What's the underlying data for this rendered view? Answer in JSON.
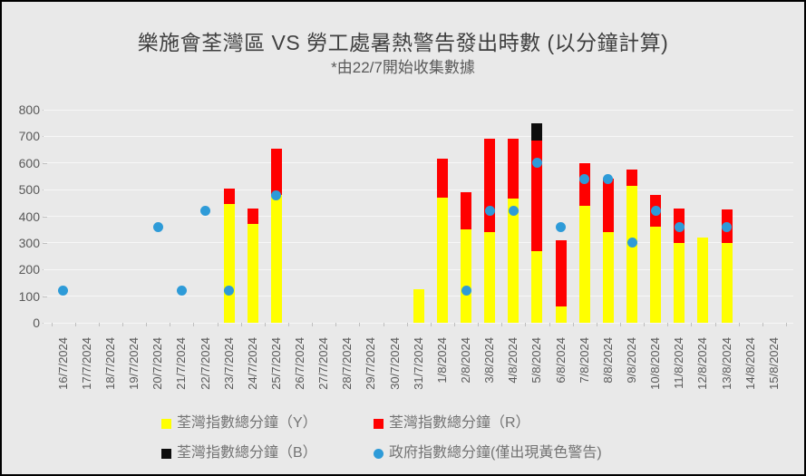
{
  "title": "樂施會荃灣區 VS 勞工處暑熱警告發出時數 (以分鐘計算)",
  "subtitle": "*由22/7開始收集數據",
  "colors": {
    "background": "#e9e9e9",
    "gridline": "#f7f7f7",
    "axis_text": "#595959",
    "legend_text": "#737373",
    "yellow": "#ffff00",
    "red": "#ff0000",
    "black": "#0d0d0d",
    "blue": "#2e9bd8"
  },
  "chart_data": {
    "type": "bar",
    "subtype": "stacked-bar-with-scatter",
    "title": "樂施會荃灣區 VS 勞工處暑熱警告發出時數 (以分鐘計算)",
    "subtitle": "*由22/7開始收集數據",
    "xlabel": "",
    "ylabel": "",
    "ylim": [
      0,
      800
    ],
    "y_step": 100,
    "grid": true,
    "legend_position": "bottom",
    "categories": [
      "16/7/2024",
      "17/7/2024",
      "18/7/2024",
      "19/7/2024",
      "20/7/2024",
      "21/7/2024",
      "22/7/2024",
      "23/7/2024",
      "24/7/2024",
      "25/7/2024",
      "26/7/2024",
      "27/7/2024",
      "28/7/2024",
      "29/7/2024",
      "30/7/2024",
      "31/7/2024",
      "1/8/2024",
      "2/8/2024",
      "3/8/2024",
      "4/8/2024",
      "5/8/2024",
      "6/8/2024",
      "7/8/2024",
      "8/8/2024",
      "9/8/2024",
      "10/8/2024",
      "11/8/2024",
      "12/8/2024",
      "13/8/2024",
      "14/8/2024",
      "15/8/2024"
    ],
    "series": [
      {
        "name": "荃灣指數總分鐘（Y）",
        "kind": "bar",
        "marker": "square",
        "color": "#ffff00",
        "values": [
          0,
          0,
          0,
          0,
          0,
          0,
          0,
          445,
          370,
          480,
          0,
          0,
          0,
          0,
          0,
          125,
          470,
          350,
          340,
          465,
          270,
          60,
          440,
          340,
          515,
          360,
          300,
          320,
          300,
          0,
          0
        ]
      },
      {
        "name": "荃灣指數總分鐘（R）",
        "kind": "bar",
        "marker": "square",
        "color": "#ff0000",
        "values": [
          0,
          0,
          0,
          0,
          0,
          0,
          0,
          60,
          60,
          175,
          0,
          0,
          0,
          0,
          0,
          0,
          145,
          140,
          350,
          225,
          415,
          250,
          160,
          200,
          60,
          120,
          130,
          0,
          125,
          0,
          0
        ]
      },
      {
        "name": "荃灣指數總分鐘（B）",
        "kind": "bar",
        "marker": "square",
        "color": "#0d0d0d",
        "values": [
          0,
          0,
          0,
          0,
          0,
          0,
          0,
          0,
          0,
          0,
          0,
          0,
          0,
          0,
          0,
          0,
          0,
          0,
          0,
          0,
          65,
          0,
          0,
          0,
          0,
          0,
          0,
          0,
          0,
          0,
          0
        ]
      },
      {
        "name": "政府指數總分鐘(僅出現黃色警告)",
        "kind": "scatter",
        "marker": "circle",
        "color": "#2e9bd8",
        "values": [
          120,
          null,
          null,
          null,
          360,
          120,
          420,
          120,
          null,
          480,
          null,
          null,
          null,
          null,
          null,
          null,
          null,
          120,
          420,
          420,
          600,
          360,
          540,
          540,
          300,
          420,
          360,
          null,
          360,
          null,
          null
        ]
      }
    ]
  }
}
